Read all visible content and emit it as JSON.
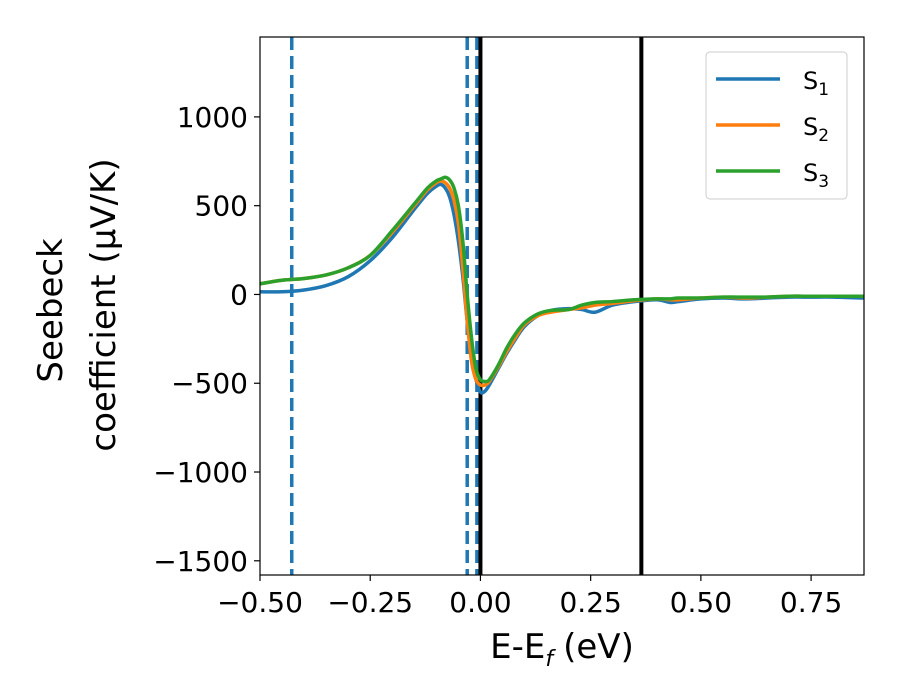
{
  "chart_data": {
    "type": "line",
    "xlabel": "E-E",
    "xlabel_sub": "f",
    "xlabel_unit": "(eV)",
    "ylabel_line1": "Seebeck",
    "ylabel_line2": "coefficient  (μV/K)",
    "xlim": [
      -0.5,
      0.87
    ],
    "ylim": [
      -1580,
      1450
    ],
    "x_ticks": [
      -0.5,
      -0.25,
      0.0,
      0.25,
      0.5,
      0.75
    ],
    "x_tick_labels": [
      "−0.50",
      "−0.25",
      "0.00",
      "0.25",
      "0.50",
      "0.75"
    ],
    "y_ticks": [
      1000,
      500,
      0,
      -500,
      -1000,
      -1500
    ],
    "y_tick_labels": [
      "1000",
      "500",
      "0",
      "−500",
      "−1000",
      "−1500"
    ],
    "grid": false,
    "legend_position": "top-right",
    "vlines": [
      {
        "x": -0.428,
        "color": "#1f77b4",
        "style": "dashed"
      },
      {
        "x": -0.03,
        "color": "#1f77b4",
        "style": "dashed"
      },
      {
        "x": -0.008,
        "color": "#1f77b4",
        "style": "dashed"
      },
      {
        "x": 0.0,
        "color": "#000000",
        "style": "solid"
      },
      {
        "x": 0.365,
        "color": "#000000",
        "style": "solid"
      }
    ],
    "series": [
      {
        "name": "S",
        "name_sub": "1",
        "color": "#1f77b4",
        "x": [
          -0.5,
          -0.45,
          -0.4,
          -0.35,
          -0.3,
          -0.25,
          -0.2,
          -0.15,
          -0.12,
          -0.1,
          -0.09,
          -0.08,
          -0.07,
          -0.06,
          -0.05,
          -0.04,
          -0.03,
          -0.02,
          -0.01,
          0.0,
          0.01,
          0.02,
          0.04,
          0.06,
          0.08,
          0.1,
          0.13,
          0.16,
          0.2,
          0.23,
          0.26,
          0.3,
          0.35,
          0.4,
          0.43,
          0.45,
          0.5,
          0.55,
          0.6,
          0.65,
          0.7,
          0.75,
          0.8,
          0.87
        ],
        "y": [
          15,
          15,
          25,
          50,
          100,
          190,
          320,
          480,
          570,
          610,
          620,
          600,
          550,
          450,
          300,
          100,
          -150,
          -350,
          -480,
          -550,
          -545,
          -510,
          -420,
          -330,
          -250,
          -180,
          -120,
          -90,
          -80,
          -85,
          -100,
          -60,
          -40,
          -30,
          -45,
          -40,
          -25,
          -20,
          -25,
          -20,
          -15,
          -15,
          -15,
          -20
        ]
      },
      {
        "name": "S",
        "name_sub": "2",
        "color": "#ff7f0e",
        "x": [
          -0.5,
          -0.45,
          -0.4,
          -0.35,
          -0.3,
          -0.25,
          -0.2,
          -0.15,
          -0.12,
          -0.1,
          -0.09,
          -0.08,
          -0.07,
          -0.06,
          -0.05,
          -0.04,
          -0.03,
          -0.02,
          -0.01,
          0.0,
          0.01,
          0.02,
          0.04,
          0.06,
          0.08,
          0.1,
          0.13,
          0.16,
          0.2,
          0.23,
          0.26,
          0.3,
          0.35,
          0.4,
          0.43,
          0.45,
          0.5,
          0.55,
          0.6,
          0.65,
          0.7,
          0.75,
          0.8,
          0.87
        ],
        "y": [
          60,
          80,
          90,
          110,
          150,
          220,
          350,
          500,
          590,
          630,
          640,
          630,
          600,
          530,
          400,
          150,
          -150,
          -380,
          -480,
          -510,
          -510,
          -490,
          -410,
          -320,
          -240,
          -170,
          -120,
          -100,
          -85,
          -75,
          -60,
          -50,
          -35,
          -25,
          -30,
          -30,
          -20,
          -15,
          -20,
          -15,
          -10,
          -10,
          -10,
          -10
        ]
      },
      {
        "name": "S",
        "name_sub": "3",
        "color": "#2ca02c",
        "x": [
          -0.5,
          -0.45,
          -0.4,
          -0.35,
          -0.3,
          -0.25,
          -0.2,
          -0.15,
          -0.12,
          -0.1,
          -0.09,
          -0.08,
          -0.07,
          -0.06,
          -0.05,
          -0.04,
          -0.03,
          -0.02,
          -0.01,
          0.0,
          0.01,
          0.02,
          0.04,
          0.06,
          0.08,
          0.1,
          0.13,
          0.16,
          0.2,
          0.23,
          0.26,
          0.3,
          0.35,
          0.4,
          0.43,
          0.45,
          0.5,
          0.55,
          0.6,
          0.65,
          0.7,
          0.75,
          0.8,
          0.87
        ],
        "y": [
          60,
          80,
          90,
          110,
          150,
          220,
          360,
          510,
          600,
          640,
          650,
          660,
          645,
          600,
          500,
          300,
          0,
          -250,
          -420,
          -480,
          -490,
          -480,
          -400,
          -300,
          -220,
          -160,
          -110,
          -90,
          -85,
          -60,
          -45,
          -40,
          -30,
          -25,
          -25,
          -20,
          -20,
          -15,
          -15,
          -15,
          -10,
          -10,
          -10,
          -10
        ]
      }
    ]
  }
}
